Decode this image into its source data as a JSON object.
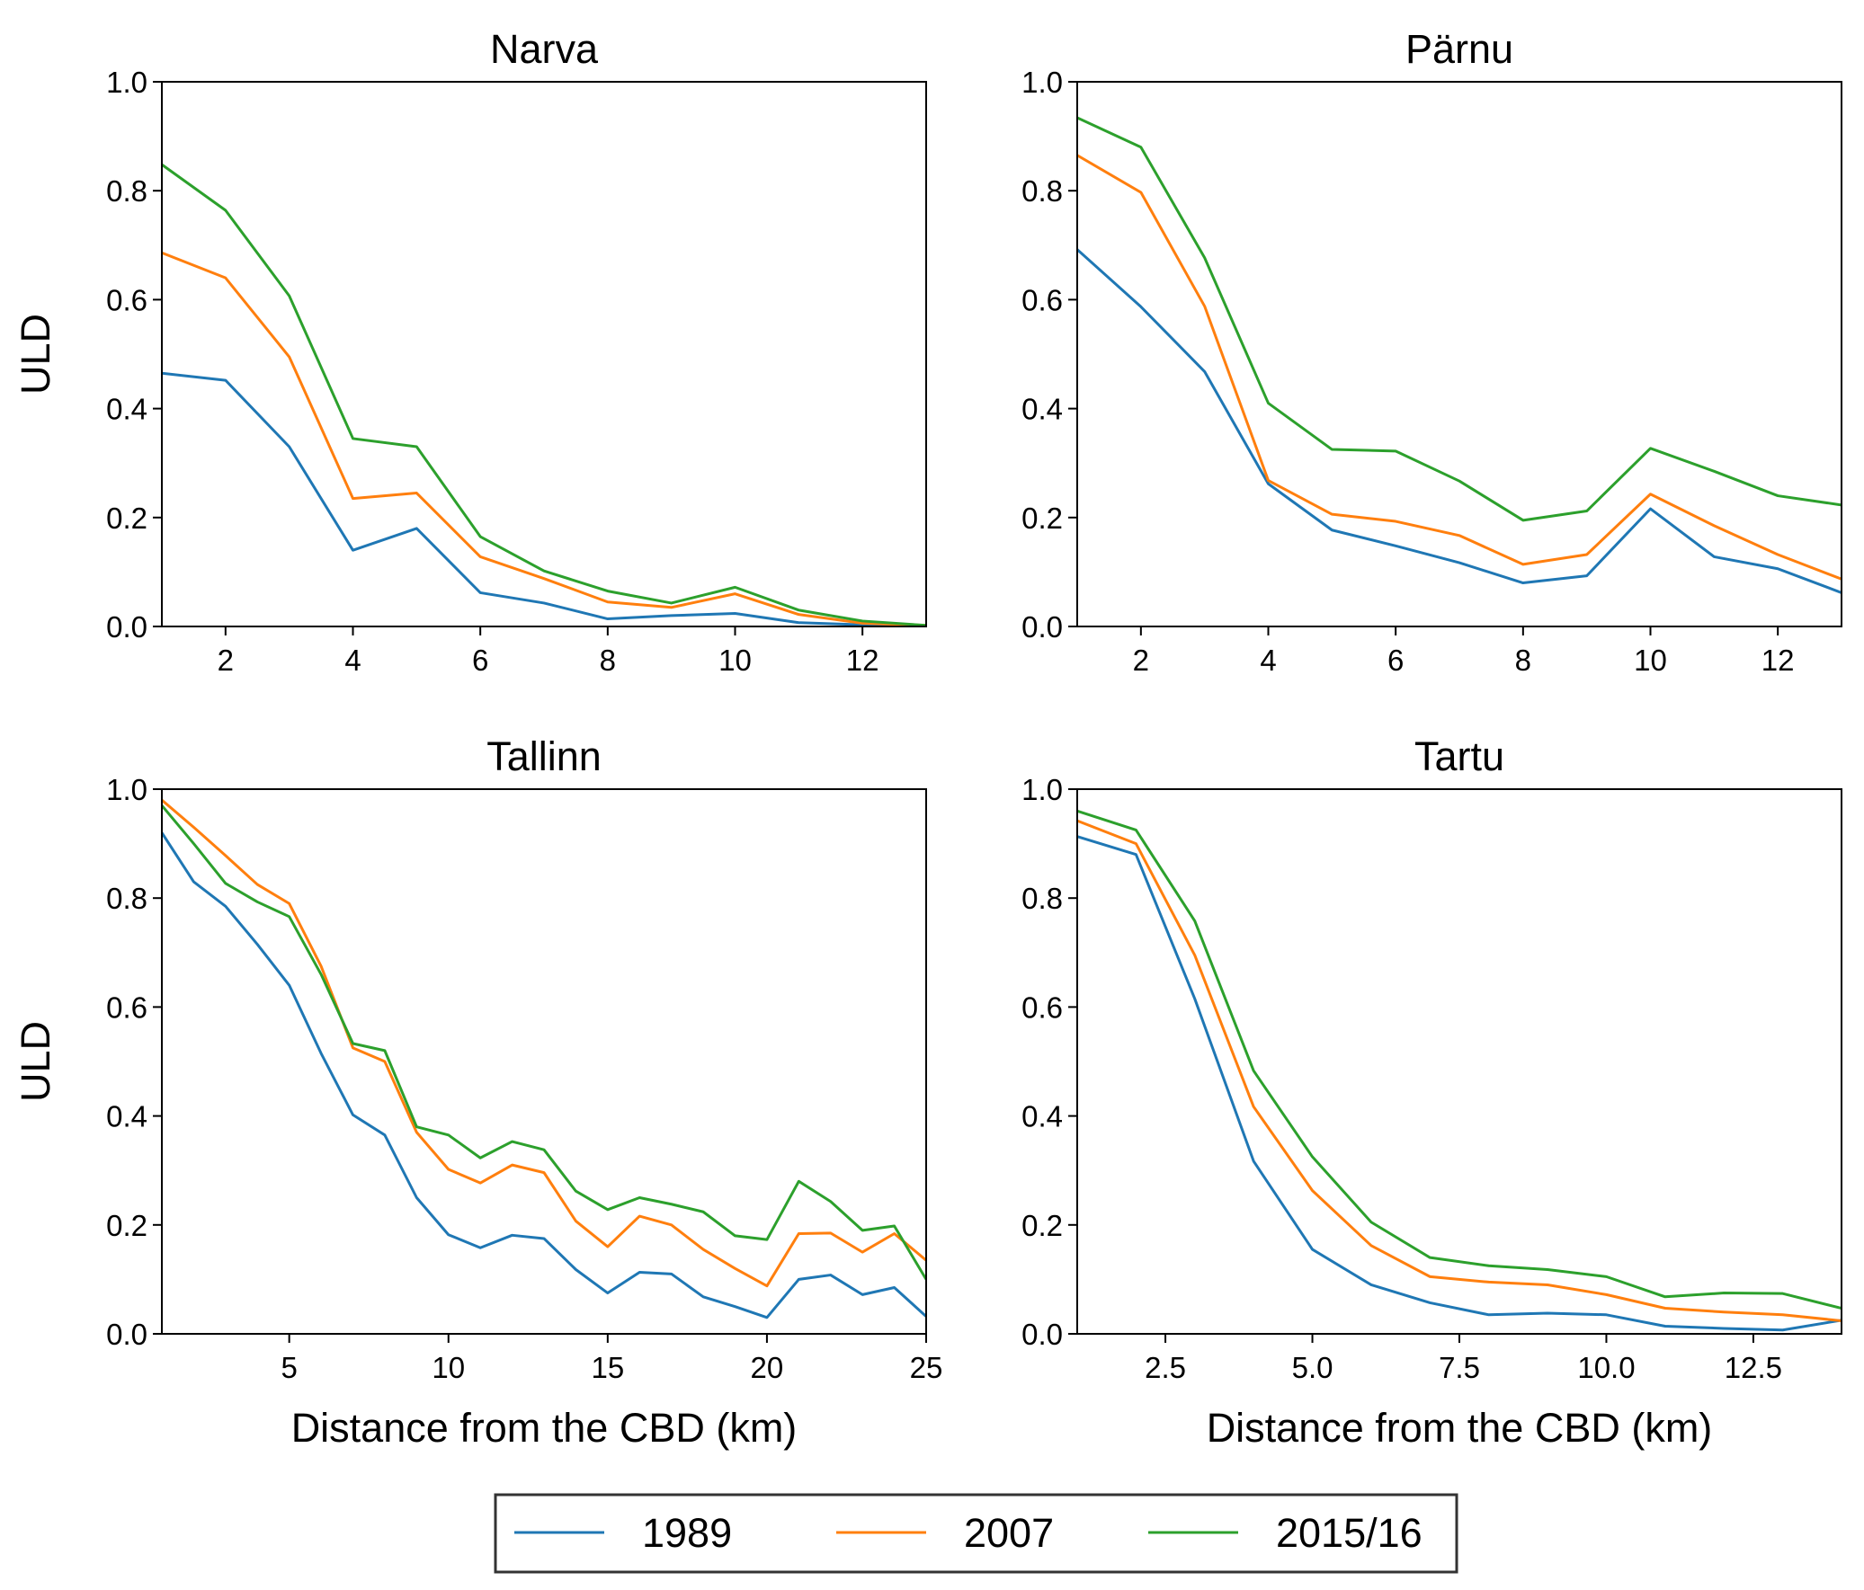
{
  "chart_data": [
    {
      "type": "line",
      "title": "Narva",
      "xlabel": "",
      "ylabel": "ULD",
      "xlim": [
        1,
        13
      ],
      "ylim": [
        0,
        1
      ],
      "xticks": [
        2,
        4,
        6,
        8,
        10,
        12
      ],
      "yticks": [
        0.0,
        0.2,
        0.4,
        0.6,
        0.8,
        1.0
      ],
      "x": [
        1,
        2,
        3,
        4,
        5,
        6,
        7,
        8,
        9,
        10,
        11,
        12,
        13
      ],
      "series": [
        {
          "name": "1989",
          "values": [
            0.465,
            0.452,
            0.33,
            0.14,
            0.18,
            0.062,
            0.043,
            0.014,
            0.02,
            0.024,
            0.007,
            0.003,
            0.001
          ]
        },
        {
          "name": "2007",
          "values": [
            0.686,
            0.64,
            0.495,
            0.235,
            0.245,
            0.128,
            0.088,
            0.045,
            0.035,
            0.06,
            0.022,
            0.006,
            0.002
          ]
        },
        {
          "name": "2015/16",
          "values": [
            0.848,
            0.764,
            0.607,
            0.345,
            0.33,
            0.165,
            0.102,
            0.065,
            0.043,
            0.072,
            0.03,
            0.01,
            0.002
          ]
        }
      ]
    },
    {
      "type": "line",
      "title": "Pärnu",
      "xlabel": "",
      "ylabel": "",
      "xlim": [
        1,
        13
      ],
      "ylim": [
        0,
        1
      ],
      "xticks": [
        2,
        4,
        6,
        8,
        10,
        12
      ],
      "yticks": [
        0.0,
        0.2,
        0.4,
        0.6,
        0.8,
        1.0
      ],
      "x": [
        1,
        2,
        3,
        4,
        5,
        6,
        7,
        8,
        9,
        10,
        11,
        12,
        13
      ],
      "series": [
        {
          "name": "1989",
          "values": [
            0.692,
            0.587,
            0.468,
            0.262,
            0.177,
            0.148,
            0.117,
            0.08,
            0.093,
            0.216,
            0.128,
            0.106,
            0.062
          ]
        },
        {
          "name": "2007",
          "values": [
            0.865,
            0.797,
            0.588,
            0.268,
            0.206,
            0.193,
            0.167,
            0.114,
            0.132,
            0.243,
            0.185,
            0.132,
            0.087
          ]
        },
        {
          "name": "2015/16",
          "values": [
            0.934,
            0.88,
            0.677,
            0.41,
            0.325,
            0.322,
            0.267,
            0.195,
            0.212,
            0.327,
            0.285,
            0.24,
            0.223
          ]
        }
      ]
    },
    {
      "type": "line",
      "title": "Tallinn",
      "xlabel": "Distance from the CBD (km)",
      "ylabel": "ULD",
      "xlim": [
        1,
        25
      ],
      "ylim": [
        0,
        1
      ],
      "xticks": [
        5,
        10,
        15,
        20,
        25
      ],
      "yticks": [
        0.0,
        0.2,
        0.4,
        0.6,
        0.8,
        1.0
      ],
      "x": [
        1,
        2,
        3,
        4,
        5,
        6,
        7,
        8,
        9,
        10,
        11,
        12,
        13,
        14,
        15,
        16,
        17,
        18,
        19,
        20,
        21,
        22,
        23,
        24,
        25
      ],
      "series": [
        {
          "name": "1989",
          "values": [
            0.92,
            0.83,
            0.785,
            0.715,
            0.64,
            0.515,
            0.402,
            0.365,
            0.25,
            0.182,
            0.158,
            0.181,
            0.175,
            0.118,
            0.075,
            0.113,
            0.11,
            0.068,
            0.05,
            0.03,
            0.1,
            0.108,
            0.072,
            0.085,
            0.032
          ]
        },
        {
          "name": "2007",
          "values": [
            0.98,
            0.93,
            0.878,
            0.825,
            0.79,
            0.675,
            0.525,
            0.5,
            0.37,
            0.302,
            0.277,
            0.31,
            0.296,
            0.207,
            0.16,
            0.216,
            0.2,
            0.155,
            0.12,
            0.088,
            0.184,
            0.185,
            0.15,
            0.184,
            0.135
          ]
        },
        {
          "name": "2015/16",
          "values": [
            0.97,
            0.9,
            0.827,
            0.793,
            0.766,
            0.66,
            0.533,
            0.52,
            0.38,
            0.365,
            0.323,
            0.353,
            0.338,
            0.262,
            0.228,
            0.25,
            0.238,
            0.224,
            0.18,
            0.173,
            0.28,
            0.243,
            0.19,
            0.198,
            0.1
          ]
        }
      ]
    },
    {
      "type": "line",
      "title": "Tartu",
      "xlabel": "Distance from the CBD (km)",
      "ylabel": "",
      "xlim": [
        1,
        14
      ],
      "ylim": [
        0,
        1
      ],
      "xticks": [
        2.5,
        5.0,
        7.5,
        10.0,
        12.5
      ],
      "yticks": [
        0.0,
        0.2,
        0.4,
        0.6,
        0.8,
        1.0
      ],
      "x": [
        1,
        2,
        3,
        4,
        5,
        6,
        7,
        8,
        9,
        10,
        11,
        12,
        13,
        14
      ],
      "series": [
        {
          "name": "1989",
          "values": [
            0.913,
            0.88,
            0.615,
            0.317,
            0.155,
            0.09,
            0.057,
            0.035,
            0.038,
            0.035,
            0.014,
            0.01,
            0.007,
            0.025
          ]
        },
        {
          "name": "2007",
          "values": [
            0.942,
            0.9,
            0.695,
            0.417,
            0.263,
            0.162,
            0.105,
            0.095,
            0.09,
            0.072,
            0.047,
            0.04,
            0.035,
            0.024
          ]
        },
        {
          "name": "2015/16",
          "values": [
            0.96,
            0.925,
            0.758,
            0.483,
            0.325,
            0.205,
            0.14,
            0.125,
            0.118,
            0.105,
            0.068,
            0.075,
            0.074,
            0.047
          ]
        }
      ]
    }
  ],
  "legend": {
    "placement": "bottom-center",
    "items": [
      {
        "label": "1989",
        "color": "#1f77b4"
      },
      {
        "label": "2007",
        "color": "#ff7f0e"
      },
      {
        "label": "2015/16",
        "color": "#2ca02c"
      }
    ]
  }
}
